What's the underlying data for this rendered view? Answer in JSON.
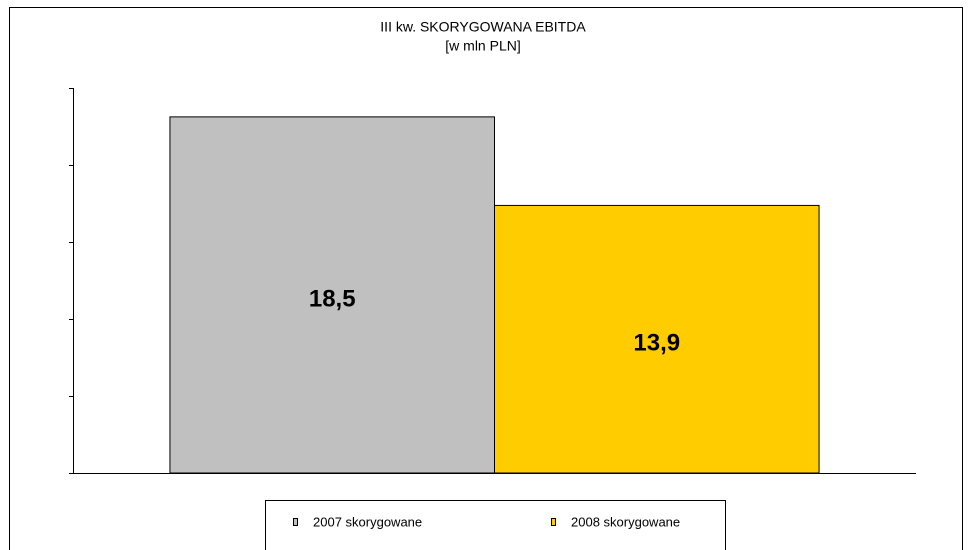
{
  "chart_data": {
    "type": "bar",
    "title": "III kw. SKORYGOWANA EBITDA",
    "subtitle": "[w mln PLN]",
    "categories": [
      null
    ],
    "series": [
      {
        "name": "2007 skorygowane",
        "color": "#c0c0c0",
        "values": [
          18.5
        ],
        "value_labels": [
          "18,5"
        ]
      },
      {
        "name": "2008 skorygowane",
        "color": "#ffcc00",
        "values": [
          13.9
        ],
        "value_labels": [
          "13,9"
        ]
      }
    ],
    "ylim": [
      0,
      20
    ],
    "yticks": [
      0,
      4,
      8,
      12,
      16,
      20
    ],
    "grid": false,
    "legend": "bottom"
  }
}
